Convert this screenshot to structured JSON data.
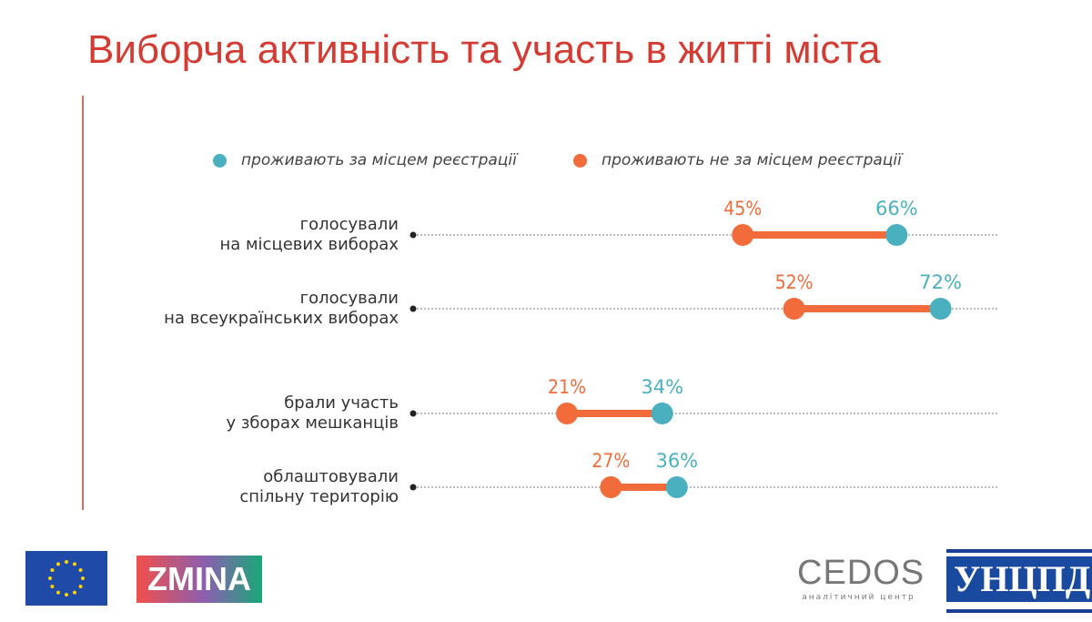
{
  "title": "Виборча активність та участь в житті міста",
  "chart_data": {
    "type": "dumbbell",
    "xlim": [
      0,
      80
    ],
    "grid": false,
    "legend_position": "top",
    "series": [
      {
        "name": "проживають за місцем реєстрації",
        "color": "#4aafbf",
        "values": [
          66,
          72,
          34,
          36
        ]
      },
      {
        "name": "проживають не за місцем реєстрації",
        "color": "#f26b3a",
        "values": [
          45,
          52,
          21,
          27
        ]
      }
    ],
    "categories": [
      [
        "голосували",
        "на місцевих виборах"
      ],
      [
        "голосували",
        "на всеукраїнських виборах"
      ],
      [
        "брали участь",
        "у зборах мешканців"
      ],
      [
        "облаштовували",
        "спільну територію"
      ]
    ],
    "value_format": "%"
  },
  "logos": {
    "eu": "EU flag",
    "zmina": "ZMINA",
    "cedos": "CEDOS",
    "cedos_sub": "аналітичний центр",
    "uncpd": "УНЦПД"
  }
}
